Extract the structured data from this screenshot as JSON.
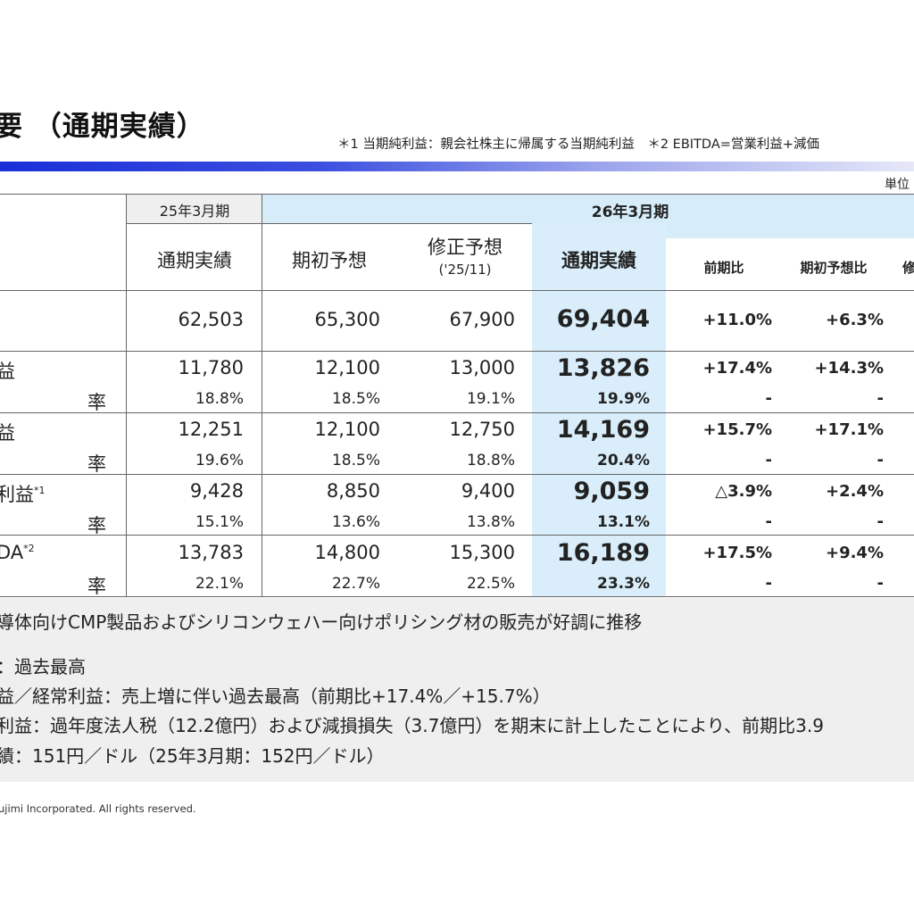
{
  "title": "要 （通期実績）",
  "footnote": "＊1 当期純利益：親会社株主に帰属する当期純利益　＊2 EBITDA=営業利益+減価",
  "unit": "単位",
  "header": {
    "prev_period": "25年3月期",
    "curr_period": "26年3月期",
    "prev_actual": "通期実績",
    "initial_forecast": "期初予想",
    "revised_forecast": "修正予想",
    "revised_date": "('25/11)",
    "curr_actual": "通期実績",
    "yoy": "前期比",
    "vs_initial": "期初予想比",
    "vs_revised": "修"
  },
  "rows": [
    {
      "label": "",
      "sup": "",
      "prev": "62,503",
      "initial": "65,300",
      "revised": "67,900",
      "actual": "69,404",
      "yoy": "+11.0%",
      "vs_initial": "+6.3%",
      "rate_label": "",
      "prev_rate": "",
      "initial_rate": "",
      "revised_rate": "",
      "actual_rate": "",
      "yoy_rate": "",
      "vs_initial_rate": ""
    },
    {
      "label": "益",
      "sup": "",
      "prev": "11,780",
      "initial": "12,100",
      "revised": "13,000",
      "actual": "13,826",
      "yoy": "+17.4%",
      "vs_initial": "+14.3%",
      "rate_label": "率",
      "prev_rate": "18.8%",
      "initial_rate": "18.5%",
      "revised_rate": "19.1%",
      "actual_rate": "19.9%",
      "yoy_rate": "-",
      "vs_initial_rate": "-"
    },
    {
      "label": "益",
      "sup": "",
      "prev": "12,251",
      "initial": "12,100",
      "revised": "12,750",
      "actual": "14,169",
      "yoy": "+15.7%",
      "vs_initial": "+17.1%",
      "rate_label": "率",
      "prev_rate": "19.6%",
      "initial_rate": "18.5%",
      "revised_rate": "18.8%",
      "actual_rate": "20.4%",
      "yoy_rate": "-",
      "vs_initial_rate": "-"
    },
    {
      "label": "利益",
      "sup": "*1",
      "prev": "9,428",
      "initial": "8,850",
      "revised": "9,400",
      "actual": "9,059",
      "yoy": "△3.9%",
      "vs_initial": "+2.4%",
      "rate_label": "率",
      "prev_rate": "15.1%",
      "initial_rate": "13.6%",
      "revised_rate": "13.8%",
      "actual_rate": "13.1%",
      "yoy_rate": "-",
      "vs_initial_rate": "-"
    },
    {
      "label": "DA",
      "sup": "*2",
      "prev": "13,783",
      "initial": "14,800",
      "revised": "15,300",
      "actual": "16,189",
      "yoy": "+17.5%",
      "vs_initial": "+9.4%",
      "rate_label": "率",
      "prev_rate": "22.1%",
      "initial_rate": "22.7%",
      "revised_rate": "22.5%",
      "actual_rate": "23.3%",
      "yoy_rate": "-",
      "vs_initial_rate": "-"
    }
  ],
  "notes": [
    "導体向けCMP製品およびシリコンウェハー向けポリシング材の販売が好調に推移",
    "：過去最高",
    "益／経常利益：売上増に伴い過去最高（前期比+17.4%／+15.7%）",
    "利益：過年度法人税（12.2億円）および減損損失（3.7億円）を期末に計上したことにより、前期比3.9",
    "績：151円／ドル（25年3月期：152円／ドル）"
  ],
  "copyright": "ujimi Incorporated. All rights reserved.",
  "colors": {
    "highlight_header": "#d6ecf8",
    "highlight_column": "#d9eefa",
    "band_start": "#1a2fd8"
  }
}
